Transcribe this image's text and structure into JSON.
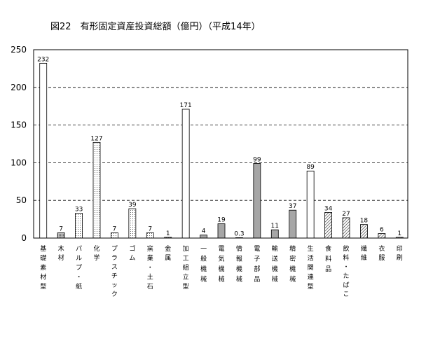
{
  "chart_data": {
    "type": "bar",
    "title": "図22　有形固定資産投資総額（億円）（平成14年）",
    "xlabel": "",
    "ylabel": "",
    "ylim": [
      0,
      250
    ],
    "yticks": [
      0,
      50,
      100,
      150,
      200,
      250
    ],
    "grid": "horizontal-dashed",
    "categories": [
      "基礎素材型",
      "木材",
      "パルプ・紙",
      "化学",
      "プラスチック",
      "ゴム",
      "窯業・土石",
      "金属",
      "加工組立型",
      "一般機械",
      "電気機械",
      "情報機械",
      "電子部品",
      "輸送機械",
      "精密機械",
      "生活関連型",
      "食料品",
      "飲料・たばこ",
      "繊維",
      "衣服",
      "印刷"
    ],
    "values": [
      232,
      7,
      33,
      127,
      7,
      39,
      7,
      1,
      171,
      4,
      19,
      0.3,
      99,
      11,
      37,
      89,
      34,
      27,
      18,
      6,
      1
    ],
    "value_labels": [
      "232",
      "7",
      "33",
      "127",
      "7",
      "39",
      "7",
      "1",
      "171",
      "4",
      "19",
      "0.3",
      "99",
      "11",
      "37",
      "89",
      "34",
      "27",
      "18",
      "6",
      "1"
    ],
    "fills": [
      "white",
      "gray-dots",
      "fine-dots",
      "fine-dots",
      "fine-dots",
      "fine-dots",
      "fine-dots",
      "fine-dots",
      "white",
      "solid-gray",
      "solid-gray",
      "solid-gray",
      "solid-gray",
      "solid-gray",
      "solid-gray",
      "white",
      "diagonal-hatch",
      "diagonal-hatch",
      "diagonal-hatch",
      "diagonal-hatch",
      "diagonal-hatch"
    ]
  }
}
